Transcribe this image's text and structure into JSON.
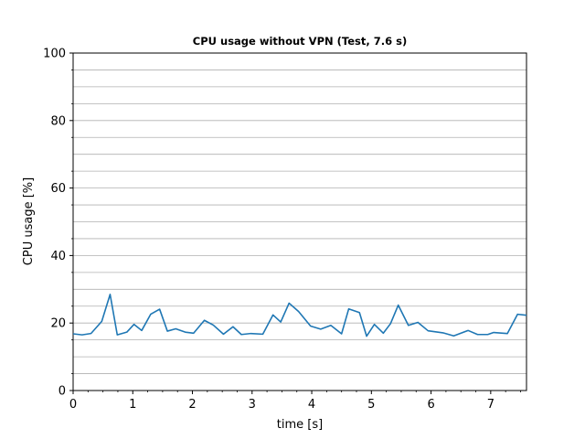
{
  "chart_data": {
    "type": "line",
    "title": "CPU usage without VPN (Test, 7.6 s)",
    "xlabel": "time [s]",
    "ylabel": "CPU usage [%]",
    "xlim": [
      0,
      7.6
    ],
    "ylim": [
      0,
      100
    ],
    "x_ticks": [
      "0",
      "1",
      "2",
      "3",
      "4",
      "5",
      "6",
      "7"
    ],
    "y_ticks": [
      "0",
      "20",
      "40",
      "60",
      "80",
      "100"
    ],
    "grid": "horizontal",
    "series": [
      {
        "color": "#1f77b4",
        "x": [
          0.0,
          0.15,
          0.3,
          0.48,
          0.62,
          0.74,
          0.9,
          1.02,
          1.15,
          1.3,
          1.45,
          1.58,
          1.72,
          1.88,
          2.02,
          2.2,
          2.35,
          2.52,
          2.68,
          2.82,
          2.98,
          3.18,
          3.35,
          3.48,
          3.62,
          3.78,
          3.98,
          4.15,
          4.32,
          4.5,
          4.62,
          4.8,
          4.92,
          5.05,
          5.2,
          5.32,
          5.45,
          5.62,
          5.78,
          5.95,
          6.2,
          6.38,
          6.62,
          6.78,
          6.95,
          7.05,
          7.28,
          7.45,
          7.6
        ],
        "y": [
          16.8,
          16.5,
          16.9,
          20.5,
          28.5,
          16.5,
          17.3,
          19.6,
          17.8,
          22.6,
          24.1,
          17.6,
          18.3,
          17.3,
          17.0,
          20.8,
          19.4,
          16.7,
          18.9,
          16.6,
          16.9,
          16.7,
          22.4,
          20.3,
          25.9,
          23.4,
          19.1,
          18.2,
          19.3,
          16.8,
          24.2,
          23.1,
          16.1,
          19.6,
          17.0,
          19.8,
          25.3,
          19.3,
          20.2,
          17.7,
          17.1,
          16.2,
          17.8,
          16.6,
          16.6,
          17.2,
          16.9,
          22.6,
          22.3
        ]
      }
    ]
  }
}
